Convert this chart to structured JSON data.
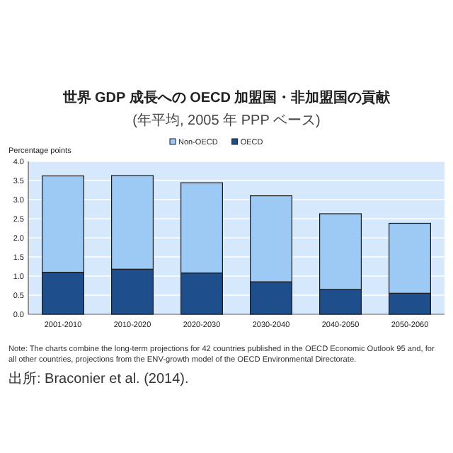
{
  "chart_data": {
    "type": "bar",
    "stacked": true,
    "title": "世界 GDP 成長への OECD 加盟国・非加盟国の貢献",
    "subtitle": "(年平均, 2005 年 PPP ベース)",
    "ylabel": "Percentage points",
    "categories": [
      "2001-2010",
      "2010-2020",
      "2020-2030",
      "2030-2040",
      "2040-2050",
      "2050-2060"
    ],
    "series": [
      {
        "name": "OECD",
        "color": "#1f4e8c",
        "values": [
          1.1,
          1.18,
          1.08,
          0.85,
          0.65,
          0.55
        ]
      },
      {
        "name": "Non-OECD",
        "color": "#9dc9f5",
        "values": [
          2.52,
          2.45,
          2.36,
          2.25,
          1.98,
          1.83
        ]
      }
    ],
    "ylim": [
      0,
      4
    ],
    "yticks": [
      {
        "value": 0,
        "label": "0.0"
      },
      {
        "value": 0.5,
        "label": "0.5"
      },
      {
        "value": 1,
        "label": "1.0"
      },
      {
        "value": 1.5,
        "label": "1.5"
      },
      {
        "value": 2,
        "label": "2.0"
      },
      {
        "value": 2.5,
        "label": "2.5"
      },
      {
        "value": 3,
        "label": "3.0"
      },
      {
        "value": 3.5,
        "label": "3.5"
      },
      {
        "value": 4,
        "label": "4.0"
      }
    ],
    "grid": "y",
    "legend": "top",
    "annotations": [
      "Note: The charts combine the long-term projections for 42 countries published in the OECD Economic Outlook 95 and, for all other countries, projections from the ENV-growth model of the OECD Environmental Directorate.",
      "出所: Braconier et al. (2014)."
    ]
  }
}
